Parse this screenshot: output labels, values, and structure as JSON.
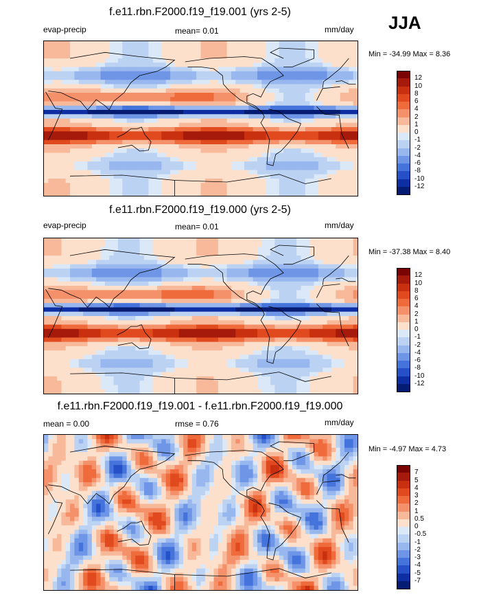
{
  "season": "JJA",
  "panels": [
    {
      "title": "f.e11.rbn.F2000.f19_f19.001 (yrs 2-5)",
      "left_label": "evap-precip",
      "center_label": "mean=  0.01",
      "units": "mm/day",
      "minmax": "Min = -34.99 Max =   8.36",
      "levels": [
        "12",
        "10",
        "8",
        "6",
        "4",
        "2",
        "1",
        "0",
        "-1",
        "-2",
        "-4",
        "-6",
        "-8",
        "-10",
        "-12"
      ],
      "variant": 1
    },
    {
      "title": "f.e11.rbn.F2000.f19_f19.000 (yrs 2-5)",
      "left_label": "evap-precip",
      "center_label": "mean=  0.01",
      "units": "mm/day",
      "minmax": "Min = -37.38 Max =   8.40",
      "levels": [
        "12",
        "10",
        "8",
        "6",
        "4",
        "2",
        "1",
        "0",
        "-1",
        "-2",
        "-4",
        "-6",
        "-8",
        "-10",
        "-12"
      ],
      "variant": 2
    },
    {
      "title": "f.e11.rbn.F2000.f19_f19.001 - f.e11.rbn.F2000.f19_f19.000",
      "left_label": "mean =  0.00",
      "center_label": "rmse =  0.76",
      "units": "mm/day",
      "minmax": "Min =  -4.97 Max =   4.73",
      "levels": [
        "7",
        "5",
        "4",
        "3",
        "2",
        "1",
        "0.5",
        "0",
        "-0.5",
        "-1",
        "-2",
        "-3",
        "-4",
        "-5",
        "-7"
      ],
      "variant": 3
    }
  ],
  "colors": {
    "palette": [
      "#7a0403",
      "#a51a0b",
      "#c8300f",
      "#e04a1e",
      "#ef6b3c",
      "#f4906a",
      "#f8b99a",
      "#fde0cc",
      "#dbe8f8",
      "#bcd2f3",
      "#97b7ee",
      "#6f96e6",
      "#4573dc",
      "#2550c8",
      "#0e2ea3",
      "#061c73"
    ],
    "ocean_bg": "#dce9f8"
  }
}
